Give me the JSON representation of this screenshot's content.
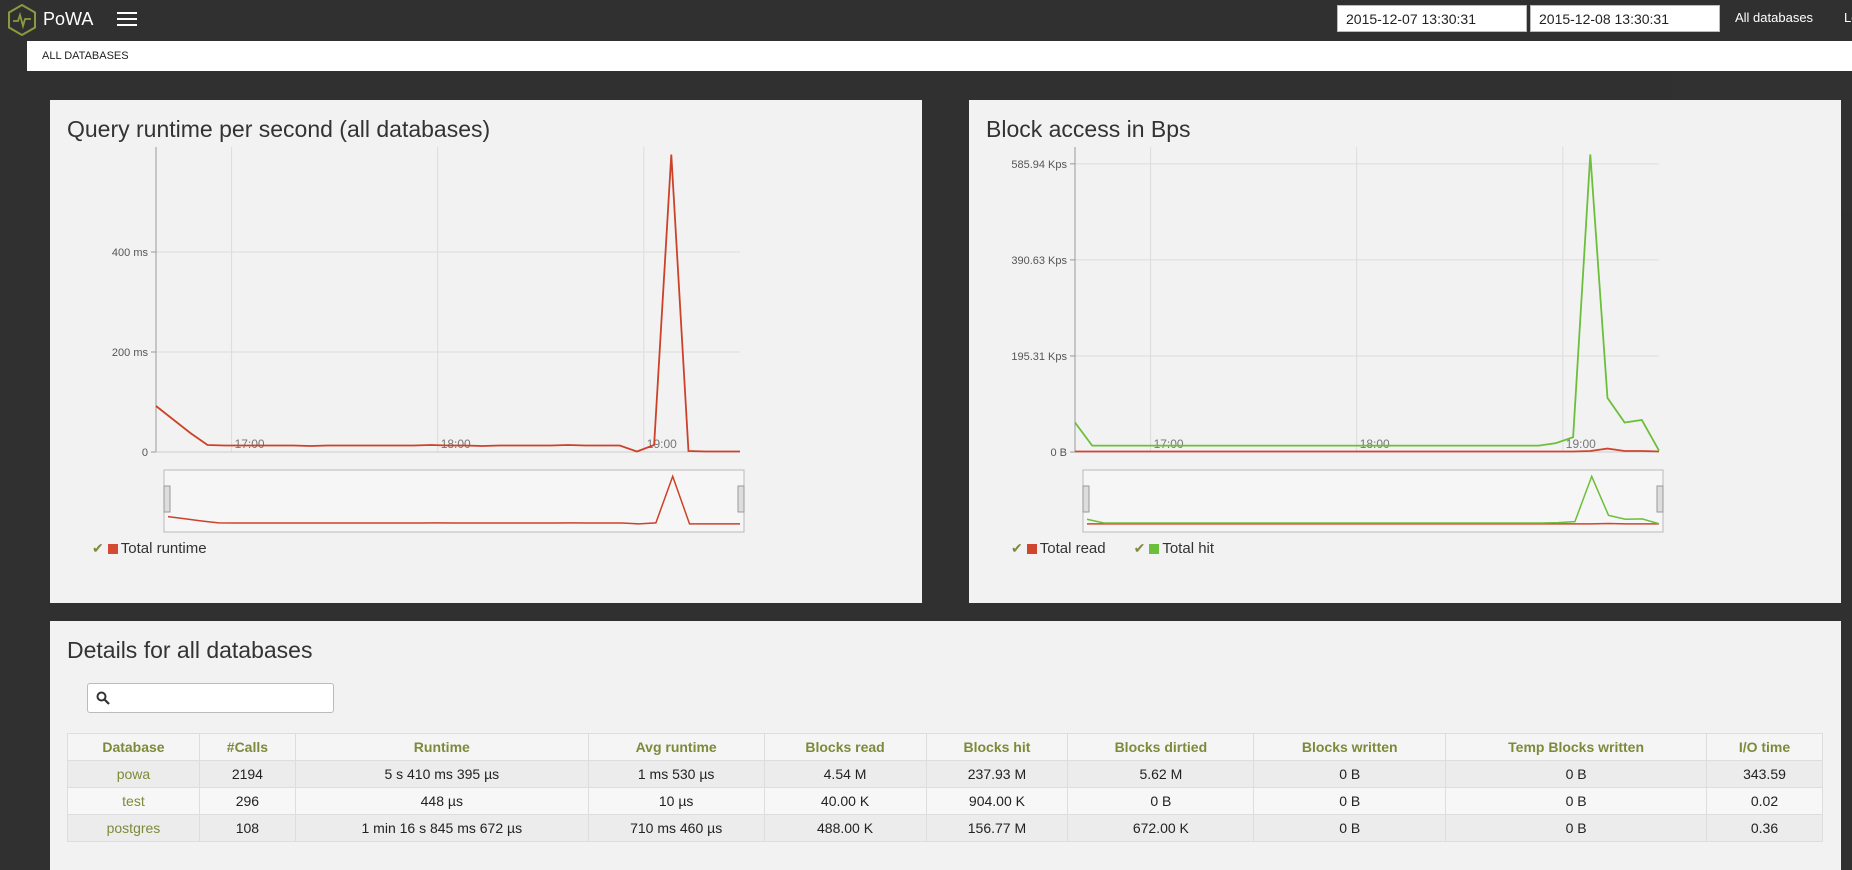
{
  "navbar": {
    "brand": "PoWA",
    "from_date": "2015-12-07 13:30:31",
    "to_date": "2015-12-08 13:30:31",
    "db_link": "All databases",
    "extra_link": "Lo"
  },
  "breadcrumb": "ALL DATABASES",
  "colors": {
    "accent": "#7c8b3a",
    "read": "#d0452e",
    "hit": "#6cbf3a",
    "runtime": "#cc4229"
  },
  "runtime_chart": {
    "title": "Query runtime per second (all databases)",
    "legend": [
      {
        "label": "Total runtime",
        "color": "#d44a32"
      }
    ]
  },
  "blocks_chart": {
    "title": "Block access in Bps",
    "legend": [
      {
        "label": "Total read",
        "color": "#d0452e"
      },
      {
        "label": "Total hit",
        "color": "#6cbf3a"
      }
    ]
  },
  "chart_data": [
    {
      "type": "line",
      "title": "Query runtime per second (all databases)",
      "xlabel": "",
      "ylabel": "",
      "x_ticks": [
        "17:00",
        "18:00",
        "19:00"
      ],
      "y_ticks": [
        "0",
        "200 ms",
        "400 ms"
      ],
      "ylim": [
        0,
        600
      ],
      "x": [
        "16:38",
        "16:43",
        "16:48",
        "16:53",
        "16:58",
        "17:03",
        "17:08",
        "17:13",
        "17:18",
        "17:23",
        "17:28",
        "17:33",
        "17:38",
        "17:43",
        "17:48",
        "17:53",
        "17:58",
        "18:03",
        "18:08",
        "18:13",
        "18:18",
        "18:23",
        "18:28",
        "18:33",
        "18:38",
        "18:43",
        "18:48",
        "18:53",
        "18:58",
        "19:03",
        "19:08",
        "19:13",
        "19:18",
        "19:23",
        "19:28"
      ],
      "series": [
        {
          "name": "Total runtime",
          "values": [
            92,
            65,
            38,
            14,
            13,
            13,
            13,
            13,
            13,
            12,
            13,
            13,
            13,
            13,
            13,
            13,
            14,
            13,
            13,
            12,
            13,
            13,
            13,
            13,
            14,
            13,
            13,
            13,
            1,
            14,
            595,
            2,
            1,
            1,
            1
          ]
        }
      ]
    },
    {
      "type": "line",
      "title": "Block access in Bps",
      "xlabel": "",
      "ylabel": "",
      "x_ticks": [
        "17:00",
        "18:00",
        "19:00"
      ],
      "y_ticks": [
        "0 B",
        "195.31 Kps",
        "390.63 Kps",
        "585.94 Kps"
      ],
      "ylim": [
        0,
        610
      ],
      "x": [
        "16:38",
        "16:43",
        "16:48",
        "16:53",
        "16:58",
        "17:03",
        "17:08",
        "17:13",
        "17:18",
        "17:23",
        "17:28",
        "17:33",
        "17:38",
        "17:43",
        "17:48",
        "17:53",
        "17:58",
        "18:03",
        "18:08",
        "18:13",
        "18:18",
        "18:23",
        "18:28",
        "18:33",
        "18:38",
        "18:43",
        "18:48",
        "18:53",
        "18:58",
        "19:03",
        "19:08",
        "19:13",
        "19:18",
        "19:23",
        "19:28"
      ],
      "series": [
        {
          "name": "Total read",
          "values": [
            1,
            1,
            1,
            1,
            1,
            1,
            1,
            1,
            1,
            1,
            1,
            1,
            1,
            1,
            1,
            1,
            1,
            1,
            1,
            1,
            1,
            1,
            1,
            1,
            1,
            1,
            1,
            1,
            1,
            1,
            2,
            7,
            2,
            2,
            1
          ]
        },
        {
          "name": "Total hit",
          "values": [
            60,
            13,
            13,
            13,
            13,
            13,
            13,
            13,
            13,
            13,
            13,
            13,
            13,
            13,
            13,
            13,
            13,
            13,
            13,
            13,
            13,
            13,
            13,
            13,
            13,
            13,
            13,
            13,
            18,
            30,
            605,
            110,
            60,
            65,
            3
          ]
        }
      ]
    }
  ],
  "details": {
    "title": "Details for all databases",
    "search_placeholder": "",
    "columns": [
      "Database",
      "#Calls",
      "Runtime",
      "Avg runtime",
      "Blocks read",
      "Blocks hit",
      "Blocks dirtied",
      "Blocks written",
      "Temp Blocks written",
      "I/O time"
    ],
    "rows": [
      [
        "powa",
        "2194",
        "5 s 410 ms 395 µs",
        "1 ms 530 µs",
        "4.54 M",
        "237.93 M",
        "5.62 M",
        "0 B",
        "0 B",
        "343.59"
      ],
      [
        "test",
        "296",
        "448 µs",
        "10 µs",
        "40.00 K",
        "904.00 K",
        "0 B",
        "0 B",
        "0 B",
        "0.02"
      ],
      [
        "postgres",
        "108",
        "1 min 16 s 845 ms 672 µs",
        "710 ms 460 µs",
        "488.00 K",
        "156.77 M",
        "672.00 K",
        "0 B",
        "0 B",
        "0.36"
      ]
    ]
  }
}
